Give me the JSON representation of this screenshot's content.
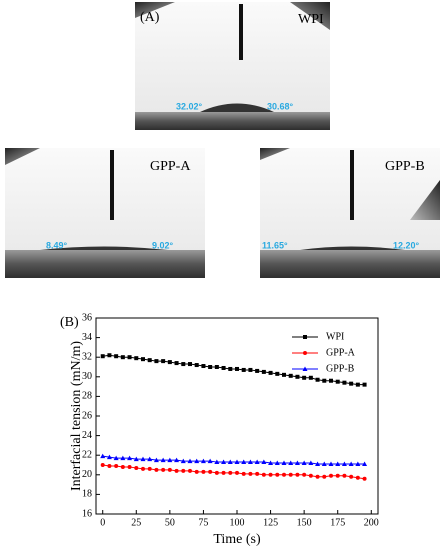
{
  "panel_a": {
    "label": "(A)",
    "images": [
      {
        "name": "WPI",
        "left_angle": "32.02°",
        "right_angle": "30.68°"
      },
      {
        "name": "GPP-A",
        "left_angle": "8.49°",
        "right_angle": "9.02°"
      },
      {
        "name": "GPP-B",
        "left_angle": "11.65°",
        "right_angle": "12.20°"
      }
    ]
  },
  "chart_data": {
    "type": "line",
    "panel_label": "(B)",
    "x_label": "Time (s)",
    "y_label": "Interfacial tension (mN/m)",
    "x": [
      0,
      5,
      10,
      15,
      20,
      25,
      30,
      35,
      40,
      45,
      50,
      55,
      60,
      65,
      70,
      75,
      80,
      85,
      90,
      95,
      100,
      105,
      110,
      115,
      120,
      125,
      130,
      135,
      140,
      145,
      150,
      155,
      160,
      165,
      170,
      175,
      180,
      185,
      190,
      195
    ],
    "series": [
      {
        "name": "WPI",
        "color": "#000000",
        "marker": "square",
        "values": [
          32.1,
          32.2,
          32.1,
          32.0,
          32.0,
          31.9,
          31.8,
          31.7,
          31.6,
          31.6,
          31.5,
          31.4,
          31.3,
          31.3,
          31.2,
          31.1,
          31.0,
          31.0,
          30.9,
          30.8,
          30.8,
          30.7,
          30.7,
          30.6,
          30.5,
          30.4,
          30.3,
          30.2,
          30.1,
          30.0,
          29.9,
          29.9,
          29.7,
          29.6,
          29.6,
          29.5,
          29.4,
          29.3,
          29.2,
          29.2
        ]
      },
      {
        "name": "GPP-A",
        "color": "#ff0000",
        "marker": "circle",
        "values": [
          21.0,
          20.9,
          20.9,
          20.8,
          20.8,
          20.7,
          20.6,
          20.6,
          20.5,
          20.5,
          20.5,
          20.4,
          20.4,
          20.4,
          20.3,
          20.3,
          20.3,
          20.2,
          20.2,
          20.2,
          20.2,
          20.1,
          20.1,
          20.1,
          20.0,
          20.0,
          20.0,
          20.0,
          20.0,
          20.0,
          20.0,
          19.9,
          19.8,
          19.8,
          19.9,
          19.9,
          19.9,
          19.8,
          19.7,
          19.6
        ]
      },
      {
        "name": "GPP-B",
        "color": "#0000ff",
        "marker": "triangle",
        "values": [
          21.9,
          21.8,
          21.7,
          21.7,
          21.7,
          21.6,
          21.6,
          21.6,
          21.5,
          21.5,
          21.5,
          21.5,
          21.4,
          21.4,
          21.4,
          21.4,
          21.4,
          21.3,
          21.3,
          21.3,
          21.3,
          21.3,
          21.3,
          21.3,
          21.3,
          21.2,
          21.2,
          21.2,
          21.2,
          21.2,
          21.2,
          21.2,
          21.1,
          21.1,
          21.1,
          21.1,
          21.1,
          21.1,
          21.1,
          21.1
        ]
      }
    ],
    "xlim": [
      -5,
      205
    ],
    "xticks": [
      0,
      25,
      50,
      75,
      100,
      125,
      150,
      175,
      200
    ],
    "ylim": [
      16,
      36
    ],
    "yticks": [
      16,
      18,
      20,
      22,
      24,
      26,
      28,
      30,
      32,
      34,
      36
    ],
    "legend": "upper right",
    "grid": false
  }
}
